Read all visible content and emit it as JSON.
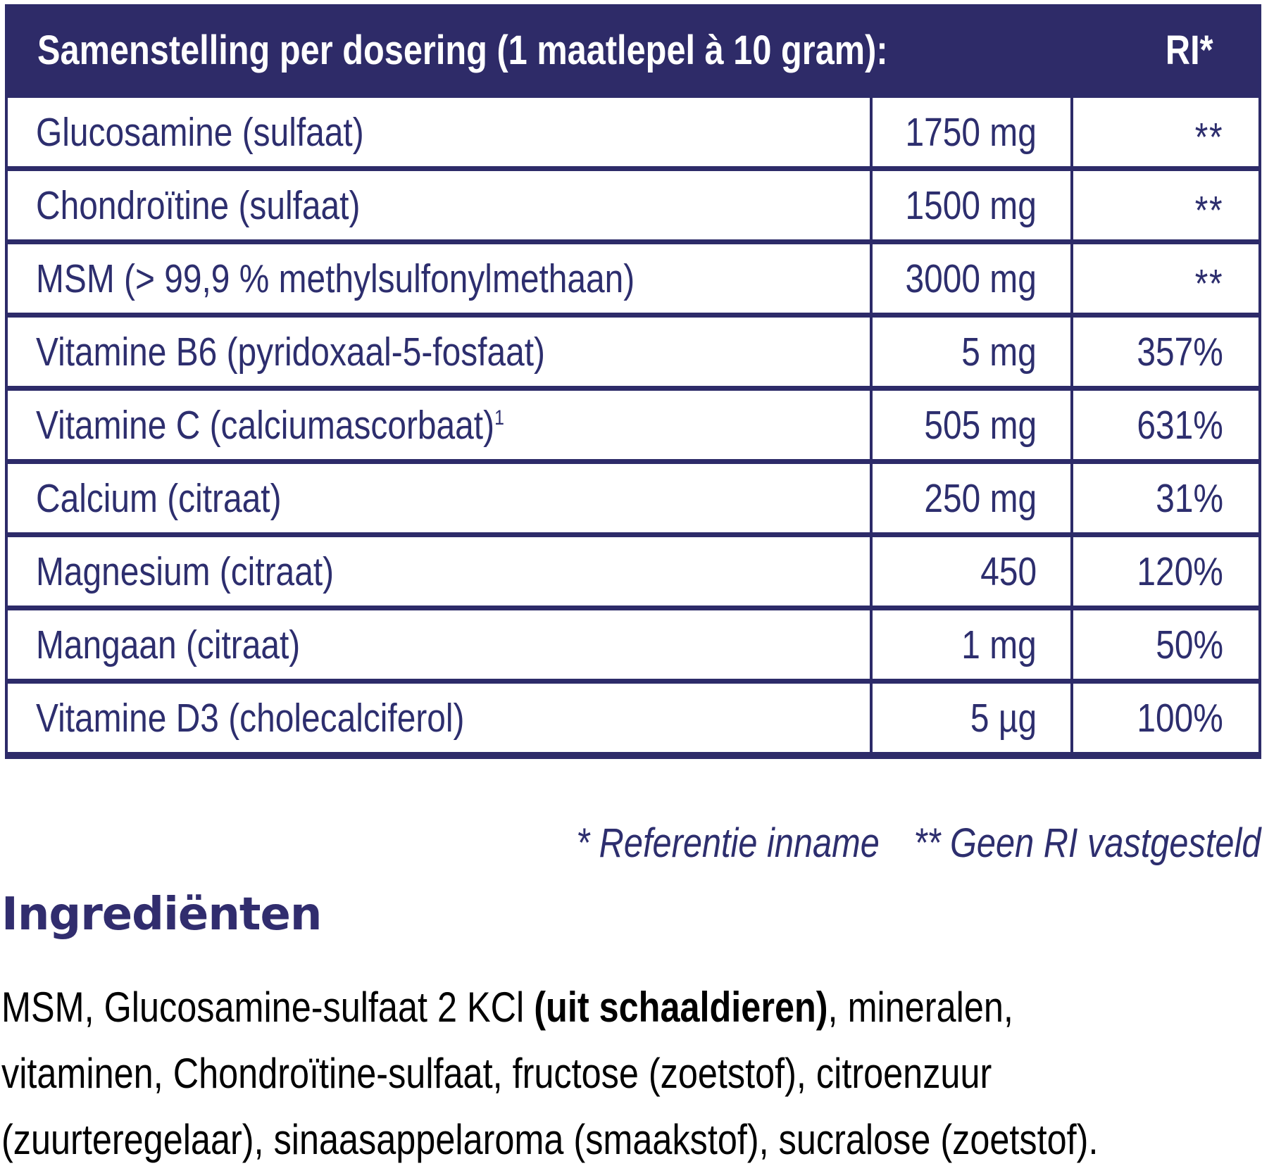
{
  "colors": {
    "navy_header_bg": "#2e2b68",
    "navy_border": "#2d2b69",
    "table_text": "#2d2e6e",
    "heading_purple": "#312d6e",
    "body_text": "#000000",
    "header_text": "#ffffff"
  },
  "table": {
    "header": {
      "title": "Samenstelling per dosering (1 maatlepel à 10 gram):",
      "ri_label": "RI*"
    },
    "rows": [
      {
        "name": "Glucosamine (sulfaat)",
        "sup": "",
        "amount": "1750 mg",
        "ri": "**"
      },
      {
        "name": "Chondroïtine (sulfaat)",
        "sup": "",
        "amount": "1500 mg",
        "ri": "**"
      },
      {
        "name": "MSM (> 99,9 % methylsulfonylmethaan)",
        "sup": "",
        "amount": "3000 mg",
        "ri": "**"
      },
      {
        "name": "Vitamine B6 (pyridoxaal-5-fosfaat)",
        "sup": "",
        "amount": "5 mg",
        "ri": "357%"
      },
      {
        "name": "Vitamine C (calciumascorbaat)",
        "sup": "1",
        "amount": "505 mg",
        "ri": "631%"
      },
      {
        "name": "Calcium (citraat)",
        "sup": "",
        "amount": "250 mg",
        "ri": "31%"
      },
      {
        "name": "Magnesium (citraat)",
        "sup": "",
        "amount": "450",
        "ri": "120%"
      },
      {
        "name": "Mangaan (citraat)",
        "sup": "",
        "amount": "1 mg",
        "ri": "50%"
      },
      {
        "name": "Vitamine D3 (cholecalciferol)",
        "sup": "",
        "amount": "5 µg",
        "ri": "100%"
      }
    ]
  },
  "footnotes": {
    "reference_intake": "* Referentie inname",
    "no_ri_established": "** Geen RI vastgesteld"
  },
  "ingredients": {
    "heading": "Ingrediënten",
    "lines": [
      [
        {
          "text": "MSM, Glucosamine-sulfaat 2 KCl ",
          "bold": false
        },
        {
          "text": "(uit schaaldieren)",
          "bold": true
        },
        {
          "text": ", mineralen,",
          "bold": false
        }
      ],
      [
        {
          "text": "vitaminen, Chondroïtine-sulfaat, fructose (zoetstof), citroenzuur",
          "bold": false
        }
      ],
      [
        {
          "text": "(zuurteregelaar), sinaasappelaroma (smaakstof), sucralose (zoetstof).",
          "bold": false
        }
      ]
    ]
  }
}
